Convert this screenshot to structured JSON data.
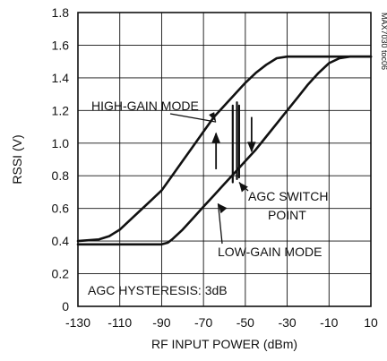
{
  "chart_data": {
    "type": "line",
    "title": "",
    "xlabel": "RF INPUT POWER (dBm)",
    "ylabel": "RSSI (V)",
    "xlim": [
      -130,
      10
    ],
    "ylim": [
      0,
      1.8
    ],
    "xticks": [
      -130,
      -110,
      -90,
      -70,
      -50,
      -30,
      -10,
      10
    ],
    "yticks": [
      0,
      0.2,
      0.4,
      0.6,
      0.8,
      1.0,
      1.2,
      1.4,
      1.6,
      1.8
    ],
    "ytick_labels": [
      "0",
      "0.2",
      "0.4",
      "0.6",
      "0.8",
      "1.0",
      "1.2",
      "1.4",
      "1.6",
      "1.8"
    ],
    "grid": true,
    "series": [
      {
        "name": "HIGH-GAIN MODE",
        "x": [
          -130,
          -120,
          -115,
          -110,
          -105,
          -100,
          -95,
          -90,
          -85,
          -80,
          -75,
          -70,
          -65,
          -60,
          -55,
          -50,
          -45,
          -40,
          -35,
          -30,
          -25,
          -20,
          -15,
          -10,
          -5,
          0,
          5,
          10
        ],
        "y": [
          0.4,
          0.41,
          0.43,
          0.47,
          0.53,
          0.59,
          0.65,
          0.71,
          0.8,
          0.89,
          0.98,
          1.07,
          1.16,
          1.23,
          1.3,
          1.37,
          1.43,
          1.48,
          1.52,
          1.53,
          1.53,
          1.53,
          1.53,
          1.53,
          1.53,
          1.53,
          1.53,
          1.53
        ]
      },
      {
        "name": "LOW-GAIN MODE",
        "x": [
          -130,
          -120,
          -110,
          -100,
          -95,
          -90,
          -87,
          -85,
          -80,
          -75,
          -70,
          -65,
          -60,
          -55,
          -50,
          -45,
          -40,
          -35,
          -30,
          -25,
          -20,
          -15,
          -10,
          -5,
          0,
          5,
          10
        ],
        "y": [
          0.38,
          0.38,
          0.38,
          0.38,
          0.38,
          0.38,
          0.39,
          0.41,
          0.47,
          0.54,
          0.61,
          0.68,
          0.75,
          0.82,
          0.89,
          0.96,
          1.04,
          1.12,
          1.2,
          1.28,
          1.36,
          1.43,
          1.49,
          1.52,
          1.53,
          1.53,
          1.53
        ]
      },
      {
        "name": "AGC switch transition 1",
        "x": [
          -56,
          -56
        ],
        "y": [
          0.76,
          1.23
        ]
      },
      {
        "name": "AGC switch transition 2",
        "x": [
          -54,
          -54
        ],
        "y": [
          0.78,
          1.25
        ]
      },
      {
        "name": "AGC switch transition 3",
        "x": [
          -53,
          -53
        ],
        "y": [
          0.79,
          1.23
        ]
      }
    ],
    "annotations": [
      {
        "text": "HIGH-GAIN MODE",
        "anchor_x": -64,
        "anchor_y": 1.13
      },
      {
        "text": "AGC SWITCH",
        "anchor_x": -53,
        "anchor_y": 0.76
      },
      {
        "text": "POINT",
        "anchor_x": -53,
        "anchor_y": 0.76
      },
      {
        "text": "LOW-GAIN MODE",
        "anchor_x": -63,
        "anchor_y": 0.63
      },
      {
        "text": "AGC HYSTERESIS: 3dB"
      },
      {
        "text": "MAX7030 toc06"
      }
    ],
    "arrows": [
      {
        "direction": "up",
        "x": -64,
        "y_from": 0.84,
        "y_to": 1.06
      },
      {
        "direction": "down",
        "x": -47,
        "y_from": 1.16,
        "y_to": 0.95
      }
    ]
  },
  "colors": {
    "line": "#111111",
    "grid": "#111111",
    "background": "#ffffff"
  }
}
